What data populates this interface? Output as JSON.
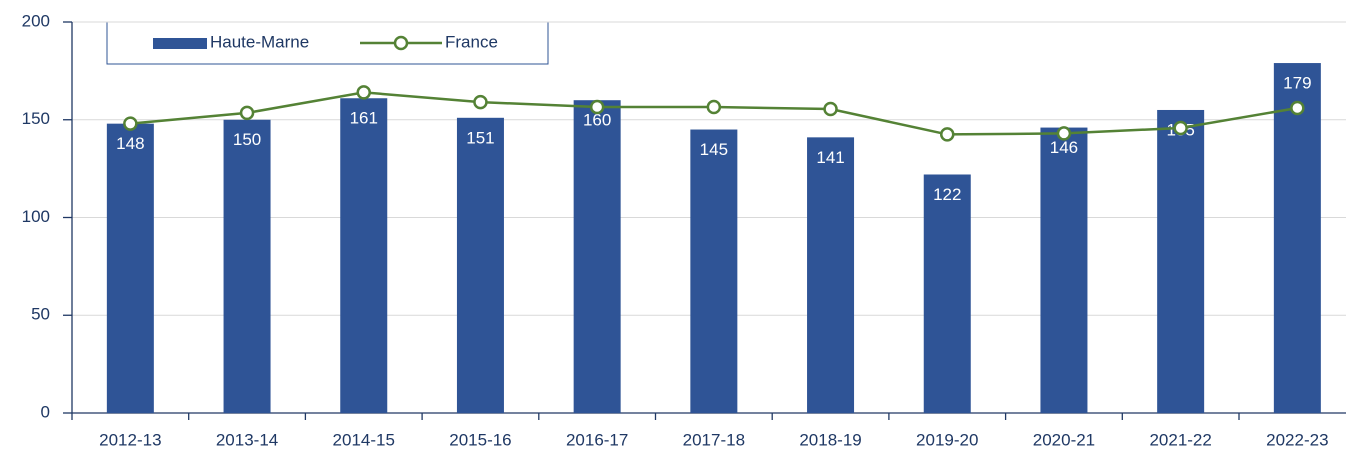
{
  "chart_data": {
    "type": "bar",
    "categories": [
      "2012-13",
      "2013-14",
      "2014-15",
      "2015-16",
      "2016-17",
      "2017-18",
      "2018-19",
      "2019-20",
      "2020-21",
      "2021-22",
      "2022-23"
    ],
    "series": [
      {
        "name": "Haute-Marne",
        "type": "bar",
        "color": "#2f5496",
        "values": [
          148,
          150,
          161,
          151,
          160,
          145,
          141,
          122,
          146,
          155,
          179
        ]
      },
      {
        "name": "France",
        "type": "line",
        "color": "#548235",
        "values": [
          148,
          153.5,
          164,
          159,
          156.5,
          156.5,
          155.5,
          142.5,
          143,
          145.8,
          156
        ]
      }
    ],
    "ylim": [
      0,
      200
    ],
    "yticks": [
      0,
      50,
      100,
      150,
      200
    ],
    "grid": true,
    "legend": "top-left"
  }
}
